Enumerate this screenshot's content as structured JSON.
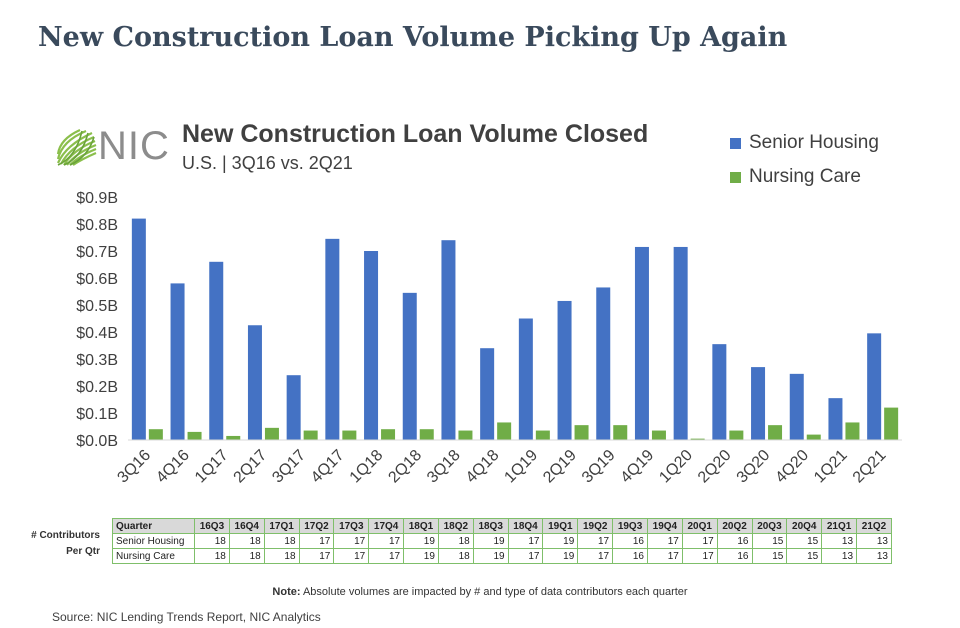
{
  "page_title": "New Construction Loan Volume Picking Up Again",
  "logo": {
    "text": "NIC",
    "color": "#8bbf4c"
  },
  "colors": {
    "senior": "#4472c4",
    "nursing": "#70ad47",
    "title": "#3a4a5c",
    "table_border": "#7fbf6a"
  },
  "chart_data": {
    "type": "bar",
    "title": "New Construction Loan Volume Closed",
    "subtitle": "U.S. | 3Q16 vs. 2Q21",
    "xlabel": "",
    "ylabel": "",
    "ylim": [
      0,
      0.9
    ],
    "yticks": [
      0,
      0.1,
      0.2,
      0.3,
      0.4,
      0.5,
      0.6,
      0.7,
      0.8,
      0.9
    ],
    "ytick_labels": [
      "$0.0B",
      "$0.1B",
      "$0.2B",
      "$0.3B",
      "$0.4B",
      "$0.5B",
      "$0.6B",
      "$0.7B",
      "$0.8B",
      "$0.9B"
    ],
    "grid": false,
    "legend_position": "top-right",
    "categories": [
      "3Q16",
      "4Q16",
      "1Q17",
      "2Q17",
      "3Q17",
      "4Q17",
      "1Q18",
      "2Q18",
      "3Q18",
      "4Q18",
      "1Q19",
      "2Q19",
      "3Q19",
      "4Q19",
      "1Q20",
      "2Q20",
      "3Q20",
      "4Q20",
      "1Q21",
      "2Q21"
    ],
    "series": [
      {
        "name": "Senior Housing",
        "color": "#4472c4",
        "values": [
          0.82,
          0.58,
          0.66,
          0.425,
          0.24,
          0.745,
          0.7,
          0.545,
          0.74,
          0.34,
          0.45,
          0.515,
          0.565,
          0.715,
          0.715,
          0.355,
          0.27,
          0.245,
          0.155,
          0.395
        ]
      },
      {
        "name": "Nursing Care",
        "color": "#70ad47",
        "values": [
          0.04,
          0.03,
          0.015,
          0.045,
          0.035,
          0.035,
          0.04,
          0.04,
          0.035,
          0.065,
          0.035,
          0.055,
          0.055,
          0.035,
          0.005,
          0.035,
          0.055,
          0.02,
          0.065,
          0.12
        ]
      }
    ]
  },
  "contributors": {
    "label_line1": "# Contributors",
    "label_line2": "Per Qtr",
    "header_first": "Quarter",
    "quarters": [
      "16Q3",
      "16Q4",
      "17Q1",
      "17Q2",
      "17Q3",
      "17Q4",
      "18Q1",
      "18Q2",
      "18Q3",
      "18Q4",
      "19Q1",
      "19Q2",
      "19Q3",
      "19Q4",
      "20Q1",
      "20Q2",
      "20Q3",
      "20Q4",
      "21Q1",
      "21Q2"
    ],
    "rows": [
      {
        "name": "Senior Housing",
        "values": [
          "18",
          "18",
          "18",
          "17",
          "17",
          "17",
          "19",
          "18",
          "19",
          "17",
          "19",
          "17",
          "16",
          "17",
          "17",
          "16",
          "15",
          "15",
          "13",
          "13"
        ]
      },
      {
        "name": "Nursing Care",
        "values": [
          "18",
          "18",
          "18",
          "17",
          "17",
          "17",
          "19",
          "18",
          "19",
          "17",
          "19",
          "17",
          "16",
          "17",
          "17",
          "16",
          "15",
          "15",
          "13",
          "13"
        ]
      }
    ]
  },
  "note": {
    "bold": "Note:",
    "text": " Absolute volumes are impacted by # and type of data contributors each quarter"
  },
  "source": "Source: NIC Lending Trends Report, NIC Analytics"
}
